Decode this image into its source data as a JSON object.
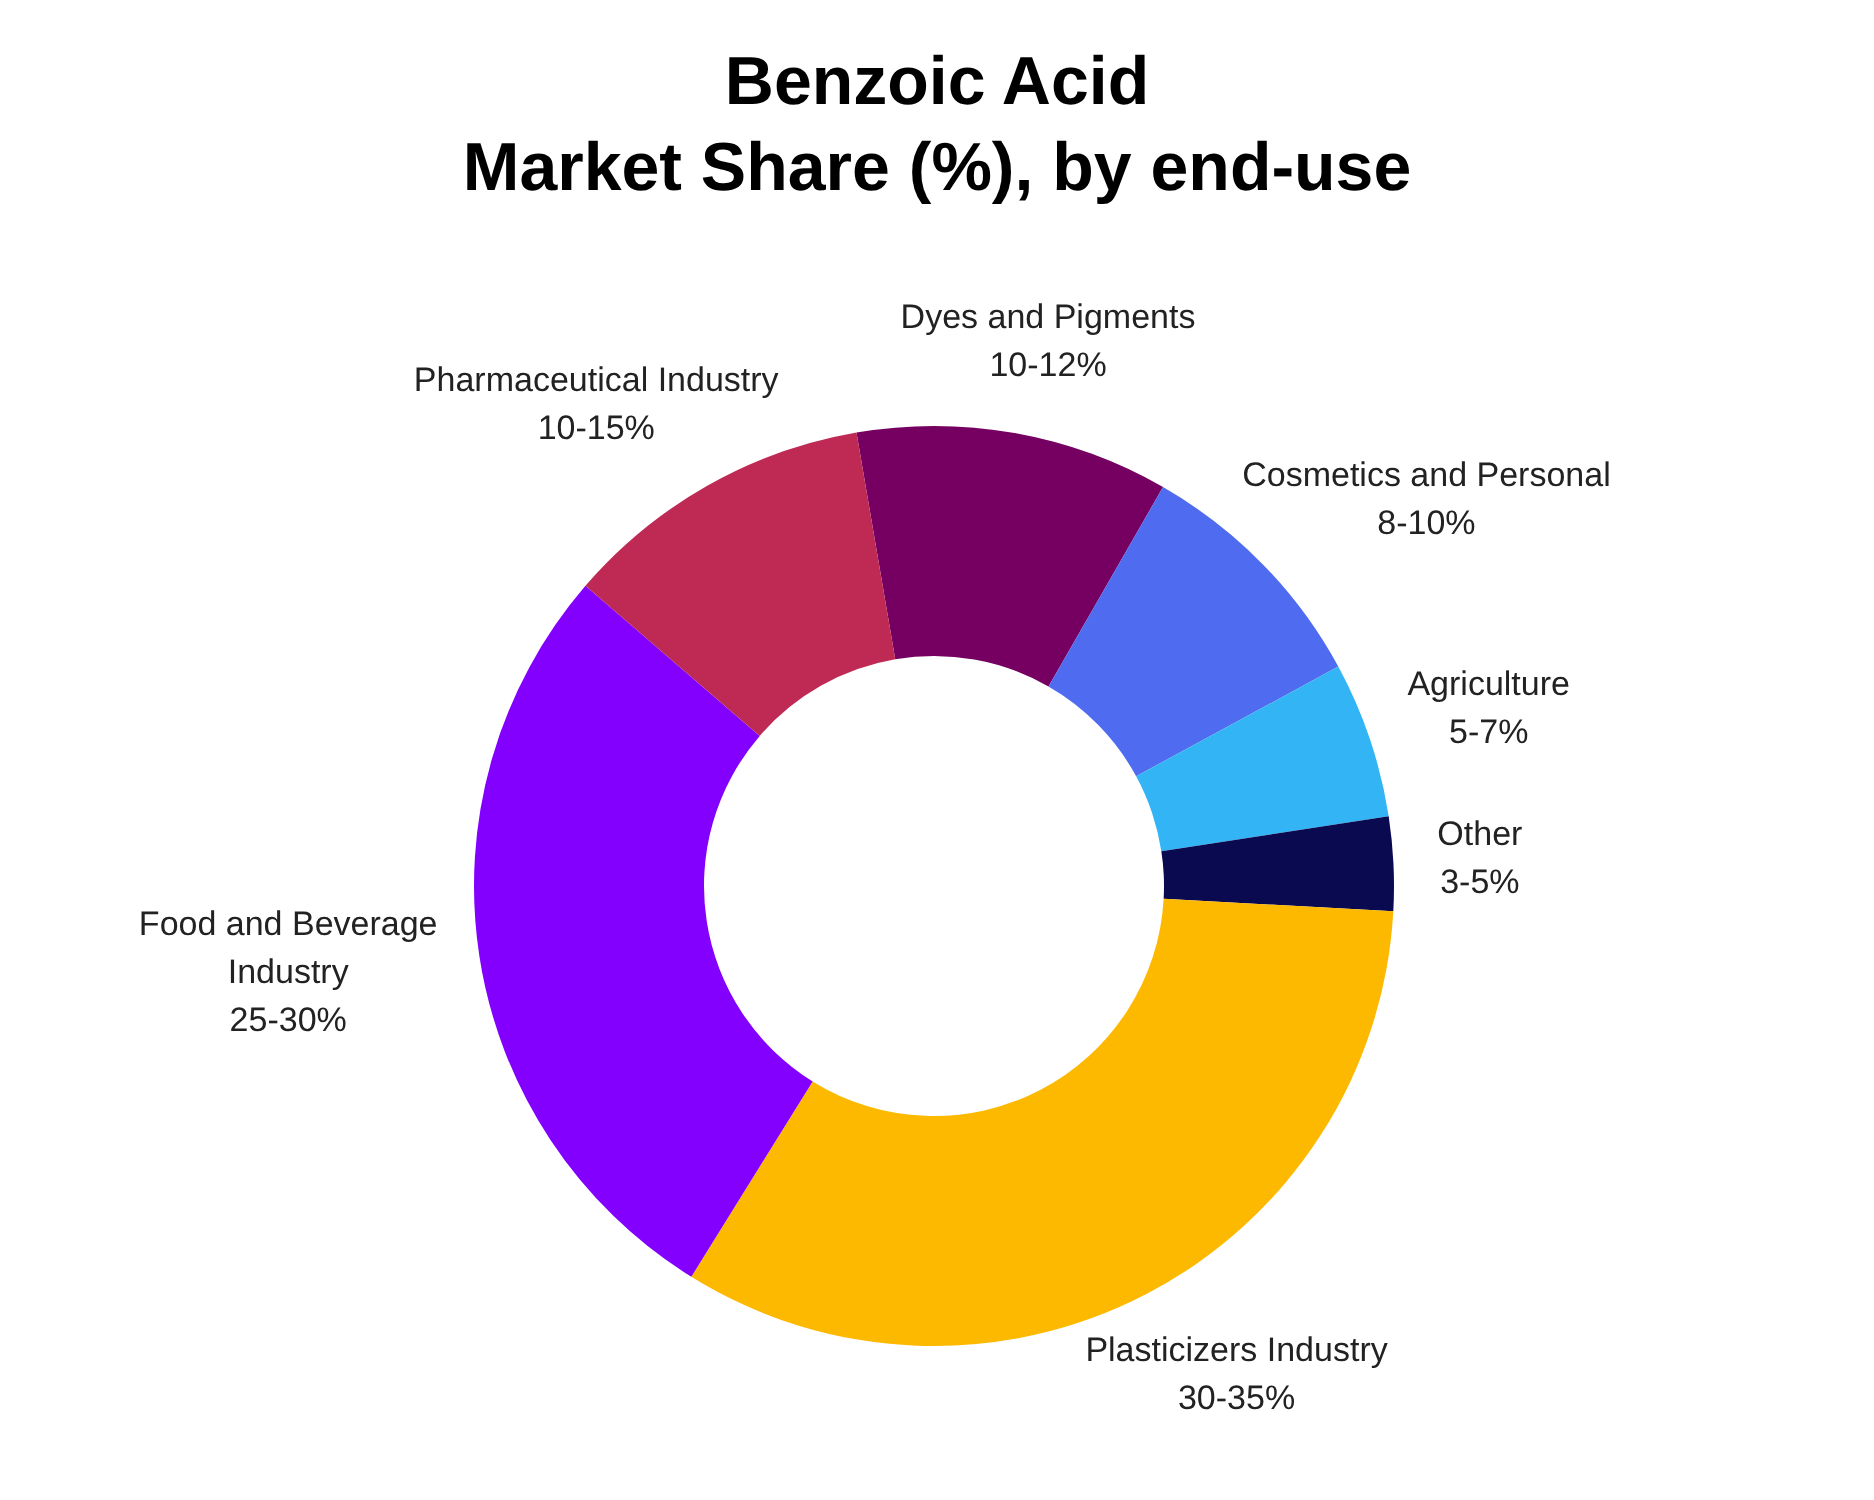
{
  "chart_data": {
    "type": "donut",
    "title": "Benzoic Acid\nMarket Share (%), by end-use",
    "categories": [
      "Dyes and Pigments",
      "Cosmetics and Personal",
      "Agriculture",
      "Other",
      "Plasticizers Industry",
      "Food and Beverage Industry",
      "Pharmaceutical Industry"
    ],
    "values": [
      10,
      8,
      5,
      3,
      30,
      25,
      10
    ],
    "value_labels": [
      "10-12%",
      "8-10%",
      "5-7%",
      "3-5%",
      "30-35%",
      "25-30%",
      "10-15%"
    ],
    "colors": [
      "#750062",
      "#4f6cf0",
      "#33b5f5",
      "#0a0a50",
      "#fdb900",
      "#8300ff",
      "#bf2a55"
    ],
    "legend": false
  }
}
